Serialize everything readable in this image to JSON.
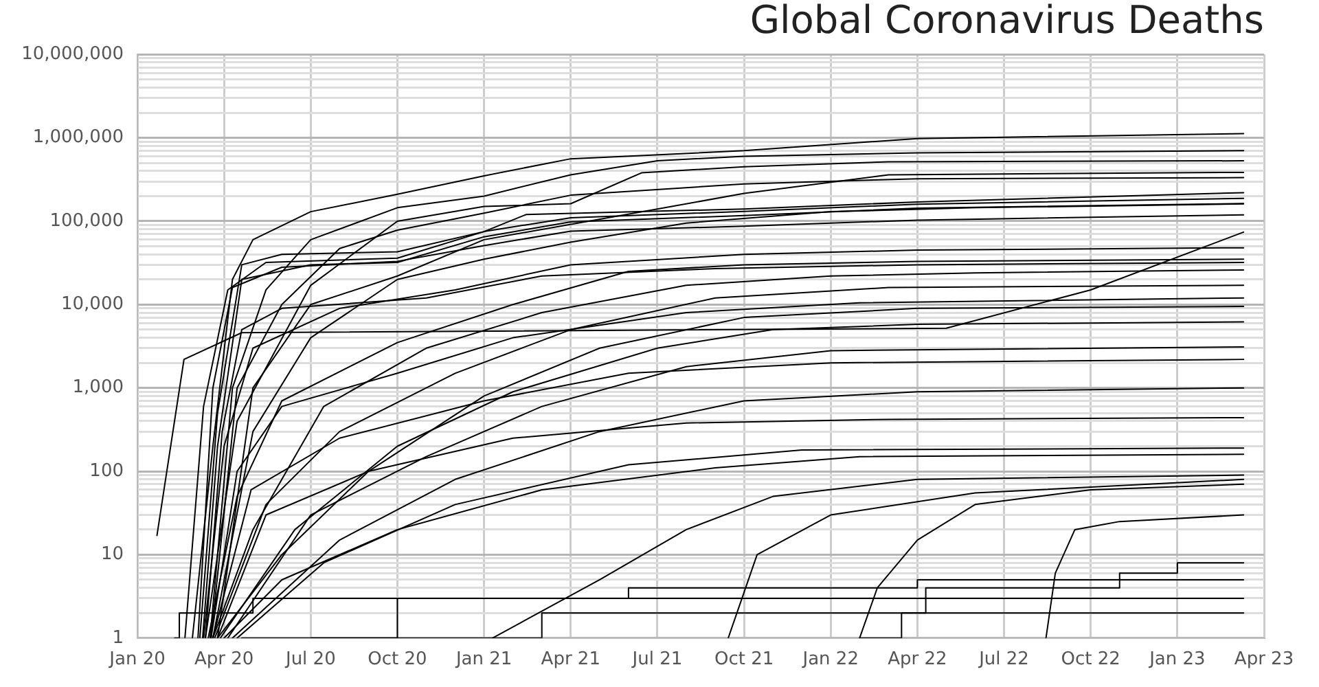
{
  "chart_data": {
    "type": "line",
    "title": "Global Coronavirus Deaths",
    "log": "y",
    "grid": true,
    "legend": false,
    "marker": "none",
    "line_style": "solid",
    "xlim": [
      "2020-01-01",
      "2023-04-01"
    ],
    "xticks": [
      {
        "value": "2020-01-01",
        "label": "Jan 20"
      },
      {
        "value": "2020-04-01",
        "label": "Apr 20"
      },
      {
        "value": "2020-07-01",
        "label": "Jul 20"
      },
      {
        "value": "2020-10-01",
        "label": "Oct 20"
      },
      {
        "value": "2021-01-01",
        "label": "Jan 21"
      },
      {
        "value": "2021-04-01",
        "label": "Apr 21"
      },
      {
        "value": "2021-07-01",
        "label": "Jul 21"
      },
      {
        "value": "2021-10-01",
        "label": "Oct 21"
      },
      {
        "value": "2022-01-01",
        "label": "Jan 22"
      },
      {
        "value": "2022-04-01",
        "label": "Apr 22"
      },
      {
        "value": "2022-07-01",
        "label": "Jul 22"
      },
      {
        "value": "2022-10-01",
        "label": "Oct 22"
      },
      {
        "value": "2023-01-01",
        "label": "Jan 23"
      },
      {
        "value": "2023-04-01",
        "label": "Apr 23"
      }
    ],
    "ylim": [
      1,
      10000000
    ],
    "yticks": [
      1,
      {
        "value": 2,
        "label": null
      },
      {
        "value": 3,
        "label": null
      },
      {
        "value": 4,
        "label": null
      },
      {
        "value": 5,
        "label": null
      },
      {
        "value": 6,
        "label": null
      },
      {
        "value": 7,
        "label": null
      },
      {
        "value": 8,
        "label": null
      },
      {
        "value": 9,
        "label": null
      },
      10,
      {
        "value": 20,
        "label": null
      },
      {
        "value": 30,
        "label": null
      },
      {
        "value": 40,
        "label": null
      },
      {
        "value": 50,
        "label": null
      },
      {
        "value": 60,
        "label": null
      },
      {
        "value": 70,
        "label": null
      },
      {
        "value": 80,
        "label": null
      },
      {
        "value": 90,
        "label": null
      },
      100,
      {
        "value": 200,
        "label": null
      },
      {
        "value": 300,
        "label": null
      },
      {
        "value": 400,
        "label": null
      },
      {
        "value": 500,
        "label": null
      },
      {
        "value": 600,
        "label": null
      },
      {
        "value": 700,
        "label": null
      },
      {
        "value": 800,
        "label": null
      },
      {
        "value": 900,
        "label": null
      },
      {
        "value": 1000,
        "label": "1,000"
      },
      {
        "value": 2000,
        "label": null
      },
      {
        "value": 3000,
        "label": null
      },
      {
        "value": 4000,
        "label": null
      },
      {
        "value": 5000,
        "label": null
      },
      {
        "value": 6000,
        "label": null
      },
      {
        "value": 7000,
        "label": null
      },
      {
        "value": 8000,
        "label": null
      },
      {
        "value": 9000,
        "label": null
      },
      {
        "value": 10000,
        "label": "10,000"
      },
      {
        "value": 20000,
        "label": null
      },
      {
        "value": 30000,
        "label": null
      },
      {
        "value": 40000,
        "label": null
      },
      {
        "value": 50000,
        "label": null
      },
      {
        "value": 60000,
        "label": null
      },
      {
        "value": 70000,
        "label": null
      },
      {
        "value": 80000,
        "label": null
      },
      {
        "value": 90000,
        "label": null
      },
      {
        "value": 100000,
        "label": "100,000"
      },
      {
        "value": 200000,
        "label": null
      },
      {
        "value": 300000,
        "label": null
      },
      {
        "value": 400000,
        "label": null
      },
      {
        "value": 500000,
        "label": null
      },
      {
        "value": 600000,
        "label": null
      },
      {
        "value": 700000,
        "label": null
      },
      {
        "value": 800000,
        "label": null
      },
      {
        "value": 900000,
        "label": null
      },
      {
        "value": 1000000,
        "label": "1,000,000"
      },
      {
        "value": 2000000,
        "label": null
      },
      {
        "value": 3000000,
        "label": null
      },
      {
        "value": 4000000,
        "label": null
      },
      {
        "value": 5000000,
        "label": null
      },
      {
        "value": 6000000,
        "label": null
      },
      {
        "value": 7000000,
        "label": null
      },
      {
        "value": 8000000,
        "label": null
      },
      {
        "value": 9000000,
        "label": null
      },
      {
        "value": 10000000,
        "label": "10,000,000"
      }
    ],
    "series": [
      {
        "color": "#000000",
        "x": [
          "2020-02-29",
          "2020-03-20",
          "2020-04-10",
          "2020-05-01",
          "2020-07-01",
          "2020-10-01",
          "2021-01-01",
          "2021-04-01",
          "2021-10-01",
          "2022-04-01",
          "2023-03-10"
        ],
        "values": [
          1,
          200,
          20000,
          60000,
          130000,
          210000,
          350000,
          560000,
          700000,
          980000,
          1120000
        ]
      },
      {
        "color": "#000000",
        "x": [
          "2020-03-17",
          "2020-04-10",
          "2020-05-15",
          "2020-07-01",
          "2020-10-01",
          "2021-01-01",
          "2021-04-01",
          "2021-07-01",
          "2021-10-01",
          "2022-04-01",
          "2023-03-10"
        ],
        "values": [
          1,
          1000,
          15000,
          60000,
          145000,
          200000,
          360000,
          530000,
          600000,
          660000,
          700000
        ]
      },
      {
        "color": "#000000",
        "x": [
          "2020-03-12",
          "2020-04-15",
          "2020-07-01",
          "2020-10-01",
          "2021-01-01",
          "2021-04-01",
          "2021-06-15",
          "2021-10-01",
          "2022-03-01",
          "2023-03-10"
        ],
        "values": [
          1,
          400,
          17000,
          100000,
          150000,
          162000,
          380000,
          450000,
          515000,
          530000
        ]
      },
      {
        "color": "#000000",
        "x": [
          "2020-03-25",
          "2020-05-01",
          "2020-07-01",
          "2020-10-01",
          "2021-01-01",
          "2021-07-01",
          "2021-10-01",
          "2022-03-01",
          "2023-03-10"
        ],
        "values": [
          1,
          1000,
          10000,
          22000,
          60000,
          140000,
          215000,
          360000,
          385000
        ]
      },
      {
        "color": "#000000",
        "x": [
          "2020-03-06",
          "2020-03-25",
          "2020-04-20",
          "2020-06-01",
          "2020-10-01",
          "2021-01-01",
          "2021-02-15",
          "2021-10-01",
          "2022-04-01",
          "2023-03-10"
        ],
        "values": [
          1,
          500,
          30000,
          40000,
          43000,
          75000,
          120000,
          140000,
          170000,
          220000
        ]
      },
      {
        "color": "#000000",
        "x": [
          "2020-02-21",
          "2020-03-10",
          "2020-04-05",
          "2020-05-15",
          "2020-10-01",
          "2021-01-01",
          "2021-04-01",
          "2021-10-01",
          "2022-04-01",
          "2023-03-10"
        ],
        "values": [
          1,
          600,
          15000,
          32000,
          36000,
          75000,
          110000,
          131000,
          160000,
          188000
        ]
      },
      {
        "color": "#000000",
        "x": [
          "2020-03-18",
          "2020-04-15",
          "2020-06-01",
          "2020-08-01",
          "2020-10-01",
          "2021-01-01",
          "2021-04-01",
          "2021-10-01",
          "2022-04-01",
          "2023-03-10"
        ],
        "values": [
          1,
          1000,
          10000,
          47000,
          78000,
          125000,
          205000,
          280000,
          323000,
          333000
        ]
      },
      {
        "color": "#000000",
        "x": [
          "2020-03-09",
          "2020-03-25",
          "2020-04-20",
          "2020-07-01",
          "2020-10-01",
          "2021-01-01",
          "2021-04-01",
          "2021-10-01",
          "2022-04-01",
          "2023-03-10"
        ],
        "values": [
          1,
          200,
          20000,
          30000,
          32000,
          65000,
          98000,
          117000,
          143000,
          163000
        ]
      },
      {
        "color": "#000000",
        "x": [
          "2020-01-22",
          "2020-02-20",
          "2020-04-20",
          "2022-05-01",
          "2022-10-01",
          "2023-03-10"
        ],
        "values": [
          17,
          2200,
          4600,
          5200,
          15000,
          74000
        ]
      },
      {
        "color": "#000000",
        "x": [
          "2020-03-04",
          "2020-03-20",
          "2020-04-10",
          "2020-06-01",
          "2020-10-01",
          "2021-01-01",
          "2021-04-01",
          "2021-10-01",
          "2022-04-01",
          "2023-03-10"
        ],
        "values": [
          1,
          1000,
          16000,
          28000,
          33000,
          51000,
          76000,
          87000,
          103000,
          119000
        ]
      },
      {
        "color": "#000000",
        "x": [
          "2020-03-20",
          "2020-05-01",
          "2020-07-01",
          "2020-10-01",
          "2021-01-01",
          "2021-04-01",
          "2021-08-01",
          "2022-01-01",
          "2022-06-01",
          "2023-03-10"
        ],
        "values": [
          1,
          300,
          4000,
          20000,
          35000,
          56000,
          95000,
          130000,
          145000,
          161000
        ]
      },
      {
        "color": "#000000",
        "x": [
          "2020-03-10",
          "2020-04-01",
          "2020-05-01",
          "2020-08-01",
          "2020-12-01",
          "2021-04-01",
          "2021-10-01",
          "2022-04-01",
          "2023-03-10"
        ],
        "values": [
          1,
          200,
          3000,
          9000,
          15000,
          30000,
          40000,
          45000,
          48000
        ]
      },
      {
        "color": "#000000",
        "x": [
          "2020-03-15",
          "2020-04-15",
          "2020-06-01",
          "2020-10-01",
          "2021-02-01",
          "2021-06-01",
          "2021-10-01",
          "2022-04-01",
          "2023-03-10"
        ],
        "values": [
          1,
          50,
          700,
          3500,
          10000,
          25000,
          30000,
          33000,
          35000
        ]
      },
      {
        "color": "#000000",
        "x": [
          "2020-03-20",
          "2020-05-01",
          "2020-07-15",
          "2020-11-01",
          "2021-03-01",
          "2021-08-01",
          "2022-01-01",
          "2022-06-01",
          "2023-03-10"
        ],
        "values": [
          1,
          20,
          600,
          3000,
          8000,
          17000,
          22000,
          24000,
          26000
        ]
      },
      {
        "color": "#000000",
        "x": [
          "2020-03-12",
          "2020-03-30",
          "2020-04-20",
          "2020-06-01",
          "2020-11-01",
          "2021-03-01",
          "2021-09-01",
          "2022-04-01",
          "2023-03-10"
        ],
        "values": [
          1,
          300,
          5000,
          9000,
          12000,
          22000,
          27000,
          30000,
          32000
        ]
      },
      {
        "color": "#000000",
        "x": [
          "2020-03-22",
          "2020-05-15",
          "2020-08-01",
          "2020-12-01",
          "2021-04-01",
          "2021-09-01",
          "2022-03-01",
          "2023-03-10"
        ],
        "values": [
          1,
          40,
          300,
          1500,
          5000,
          12000,
          16000,
          17000
        ]
      },
      {
        "color": "#000000",
        "x": [
          "2020-03-25",
          "2020-06-01",
          "2020-09-01",
          "2021-01-01",
          "2021-05-01",
          "2021-10-01",
          "2022-04-01",
          "2023-03-10"
        ],
        "values": [
          1,
          10,
          100,
          800,
          3000,
          7000,
          9000,
          9500
        ]
      },
      {
        "color": "#000000",
        "x": [
          "2020-03-18",
          "2020-04-15",
          "2020-06-01",
          "2020-10-01",
          "2021-02-01",
          "2021-08-01",
          "2022-02-01",
          "2023-03-10"
        ],
        "values": [
          1,
          100,
          600,
          1500,
          4000,
          8000,
          10500,
          12000
        ]
      },
      {
        "color": "#000000",
        "x": [
          "2020-03-28",
          "2020-06-15",
          "2020-10-01",
          "2021-02-01",
          "2021-07-01",
          "2021-11-01",
          "2022-04-01",
          "2023-03-10"
        ],
        "values": [
          1,
          20,
          200,
          900,
          3000,
          5000,
          5800,
          6200
        ]
      },
      {
        "color": "#000000",
        "x": [
          "2020-04-05",
          "2020-07-01",
          "2020-11-01",
          "2021-03-01",
          "2021-08-01",
          "2022-01-01",
          "2023-03-10"
        ],
        "values": [
          1,
          30,
          150,
          600,
          1800,
          2800,
          3100
        ]
      },
      {
        "color": "#000000",
        "x": [
          "2020-03-20",
          "2020-04-30",
          "2020-08-01",
          "2021-01-01",
          "2021-06-01",
          "2022-01-01",
          "2023-03-10"
        ],
        "values": [
          1,
          60,
          250,
          700,
          1500,
          2000,
          2200
        ]
      },
      {
        "color": "#000000",
        "x": [
          "2020-04-10",
          "2020-08-01",
          "2020-12-01",
          "2021-05-01",
          "2021-10-01",
          "2022-04-01",
          "2023-03-10"
        ],
        "values": [
          1,
          15,
          80,
          300,
          700,
          900,
          1000
        ]
      },
      {
        "color": "#000000",
        "x": [
          "2020-03-25",
          "2020-05-15",
          "2020-09-01",
          "2021-02-01",
          "2021-08-01",
          "2022-03-01",
          "2023-03-10"
        ],
        "values": [
          1,
          30,
          100,
          250,
          380,
          420,
          440
        ]
      },
      {
        "color": "#000000",
        "x": [
          "2020-04-15",
          "2020-07-15",
          "2020-12-01",
          "2021-06-01",
          "2021-12-01",
          "2023-03-10"
        ],
        "values": [
          1,
          8,
          40,
          120,
          180,
          190
        ]
      },
      {
        "color": "#000000",
        "x": [
          "2020-04-01",
          "2020-06-01",
          "2020-10-01",
          "2021-03-01",
          "2021-09-01",
          "2022-02-01",
          "2023-03-10"
        ],
        "values": [
          1,
          5,
          20,
          60,
          110,
          150,
          160
        ]
      },
      {
        "color": "#000000",
        "x": [
          "2021-01-10",
          "2021-05-01",
          "2021-08-01",
          "2021-11-01",
          "2022-04-01",
          "2023-03-10"
        ],
        "values": [
          1,
          5,
          20,
          50,
          80,
          90
        ]
      },
      {
        "color": "#000000",
        "x": [
          "2022-02-01",
          "2022-02-20",
          "2022-04-01",
          "2022-06-01",
          "2022-10-01",
          "2023-03-10"
        ],
        "values": [
          1,
          4,
          15,
          40,
          60,
          70
        ]
      },
      {
        "color": "#000000",
        "x": [
          "2022-08-15",
          "2022-08-25",
          "2022-09-15",
          "2022-11-01",
          "2023-03-10"
        ],
        "values": [
          1,
          6,
          20,
          25,
          30
        ]
      },
      {
        "color": "#000000",
        "x": [
          "2021-09-15",
          "2021-10-15",
          "2022-01-01",
          "2022-06-01",
          "2023-03-10"
        ],
        "values": [
          1,
          10,
          30,
          55,
          80
        ]
      },
      {
        "type": "step",
        "color": "#000000",
        "x": [
          "2020-02-10",
          "2020-02-15",
          "2020-05-01",
          "2023-03-10"
        ],
        "values": [
          1,
          2,
          3,
          3
        ]
      },
      {
        "type": "step",
        "color": "#000000",
        "x": [
          "2020-07-01",
          "2021-03-01",
          "2022-04-01",
          "2023-03-10"
        ],
        "values": [
          1,
          2,
          2,
          2
        ]
      },
      {
        "type": "step",
        "color": "#000000",
        "x": [
          "2020-04-20",
          "2020-10-01",
          "2021-06-01",
          "2022-04-01",
          "2023-03-10"
        ],
        "values": [
          1,
          3,
          4,
          5,
          5
        ]
      },
      {
        "type": "step",
        "color": "#000000",
        "x": [
          "2022-02-01",
          "2022-03-15",
          "2022-04-10",
          "2022-11-01",
          "2023-01-01",
          "2023-03-10"
        ],
        "values": [
          1,
          2,
          4,
          6,
          8,
          8
        ]
      }
    ]
  }
}
